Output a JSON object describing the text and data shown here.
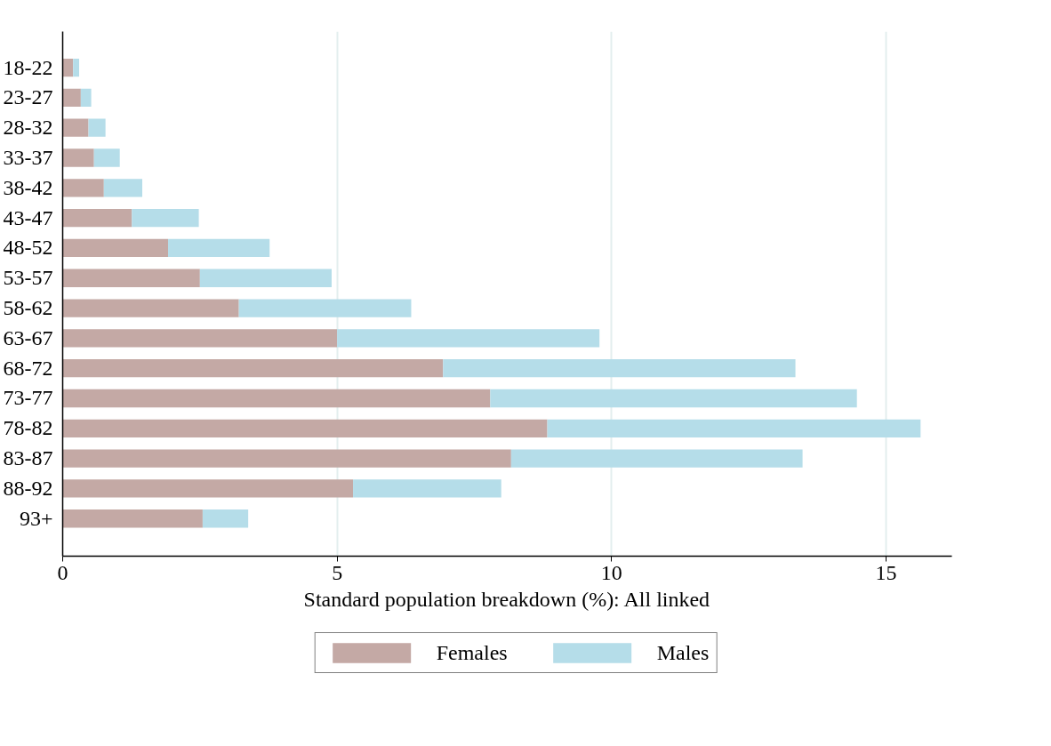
{
  "chart_data": {
    "type": "bar",
    "orientation": "horizontal",
    "stacked": true,
    "xlabel": "Standard population breakdown (%): All linked",
    "categories": [
      "18-22",
      "23-27",
      "28-32",
      "33-37",
      "38-42",
      "43-47",
      "48-52",
      "53-57",
      "58-62",
      "63-67",
      "68-72",
      "73-77",
      "78-82",
      "83-87",
      "88-92",
      "93+"
    ],
    "series": [
      {
        "name": "Females",
        "color": "#c4a9a5",
        "values": [
          0.19,
          0.33,
          0.47,
          0.57,
          0.75,
          1.26,
          1.92,
          2.5,
          3.21,
          5.0,
          6.93,
          7.79,
          8.83,
          8.17,
          5.29,
          2.55
        ]
      },
      {
        "name": "Males",
        "color": "#b5dde9",
        "values": [
          0.11,
          0.19,
          0.31,
          0.47,
          0.7,
          1.22,
          1.85,
          2.4,
          3.14,
          4.78,
          6.42,
          6.68,
          6.8,
          5.31,
          2.7,
          0.83
        ]
      }
    ],
    "xlim": [
      0,
      16.2
    ],
    "xticks": [
      0,
      5,
      10,
      15
    ],
    "grid": "x",
    "legend": "bottom"
  }
}
